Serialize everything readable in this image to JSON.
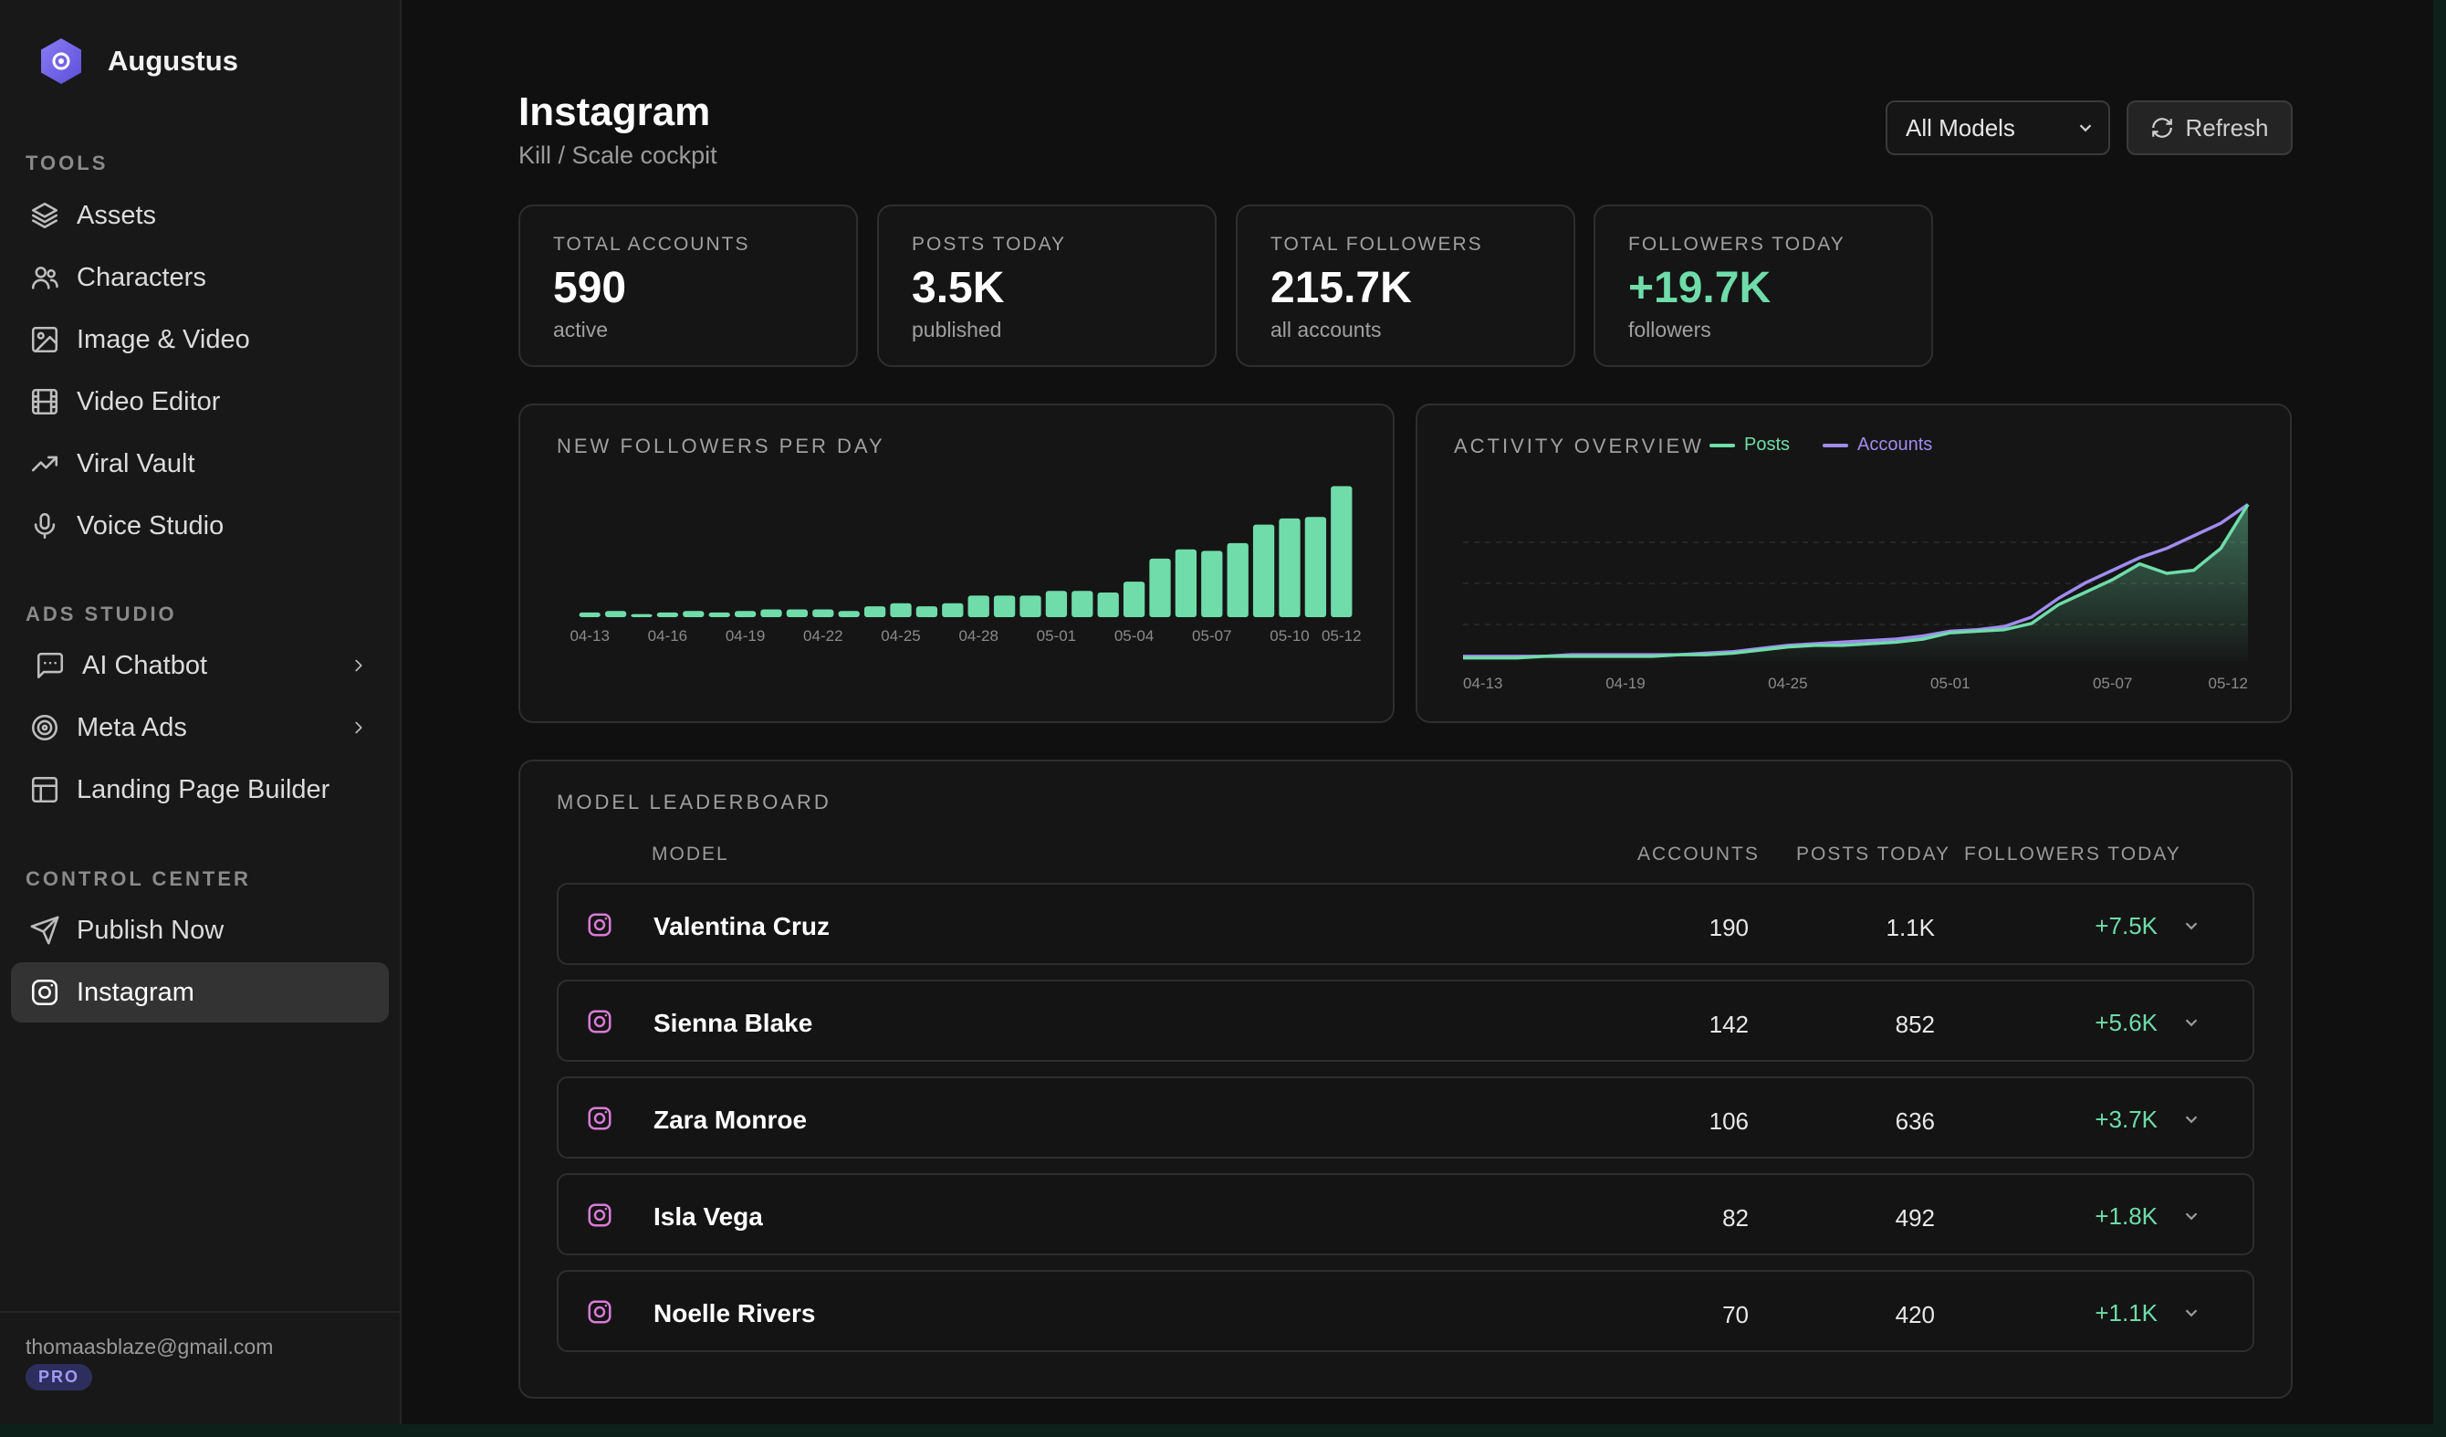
{
  "app": {
    "name": "Augustus"
  },
  "sidebar": {
    "sections": [
      {
        "label": "TOOLS",
        "items": [
          {
            "label": "Assets",
            "icon": "layers-icon"
          },
          {
            "label": "Characters",
            "icon": "users-icon"
          },
          {
            "label": "Image & Video",
            "icon": "image-icon"
          },
          {
            "label": "Video Editor",
            "icon": "film-icon"
          },
          {
            "label": "Viral Vault",
            "icon": "trending-up-icon"
          },
          {
            "label": "Voice Studio",
            "icon": "microphone-icon"
          }
        ]
      },
      {
        "label": "ADS STUDIO",
        "items": [
          {
            "label": "AI Chatbot",
            "icon": "message-square-icon",
            "expandable": true
          },
          {
            "label": "Meta Ads",
            "icon": "target-icon",
            "expandable": true
          },
          {
            "label": "Landing Page Builder",
            "icon": "layout-icon"
          }
        ]
      },
      {
        "label": "CONTROL CENTER",
        "items": [
          {
            "label": "Publish Now",
            "icon": "send-icon"
          },
          {
            "label": "Instagram",
            "icon": "instagram-icon",
            "active": true
          }
        ]
      }
    ],
    "user": {
      "email": "thomaasblaze@gmail.com",
      "plan": "PRO"
    }
  },
  "header": {
    "title": "Instagram",
    "subtitle": "Kill / Scale cockpit",
    "model_select": {
      "value": "All Models"
    },
    "refresh_label": "Refresh"
  },
  "stats": [
    {
      "label": "TOTAL ACCOUNTS",
      "value": "590",
      "sub": "active"
    },
    {
      "label": "POSTS TODAY",
      "value": "3.5K",
      "sub": "published"
    },
    {
      "label": "TOTAL FOLLOWERS",
      "value": "215.7K",
      "sub": "all accounts"
    },
    {
      "label": "FOLLOWERS TODAY",
      "value": "+19.7K",
      "sub": "followers"
    }
  ],
  "colors": {
    "green": "#6fdcaa",
    "purple": "#a08cf0",
    "pink": "#d97ad6"
  },
  "chart_data": [
    {
      "type": "bar",
      "title": "NEW FOLLOWERS PER DAY",
      "categories": [
        "04-13",
        "04-14",
        "04-15",
        "04-16",
        "04-17",
        "04-18",
        "04-19",
        "04-20",
        "04-21",
        "04-22",
        "04-23",
        "04-24",
        "04-25",
        "04-26",
        "04-27",
        "04-28",
        "04-29",
        "04-30",
        "05-01",
        "05-02",
        "05-03",
        "05-04",
        "05-05",
        "05-06",
        "05-07",
        "05-08",
        "05-09",
        "05-10",
        "05-11",
        "05-12"
      ],
      "tick_labels": [
        "04-13",
        "04-16",
        "04-19",
        "04-22",
        "04-25",
        "04-28",
        "05-01",
        "05-04",
        "05-07",
        "05-10",
        "05-12"
      ],
      "values": [
        3,
        4,
        2,
        3,
        4,
        3,
        4,
        5,
        5,
        5,
        4,
        7,
        9,
        7,
        9,
        14,
        14,
        14,
        17,
        17,
        16,
        23,
        38,
        44,
        43,
        48,
        60,
        64,
        65,
        85
      ],
      "ylim": [
        0,
        90
      ]
    },
    {
      "type": "line",
      "title": "ACTIVITY OVERVIEW",
      "x": [
        "04-13",
        "04-14",
        "04-15",
        "04-16",
        "04-17",
        "04-18",
        "04-19",
        "04-20",
        "04-21",
        "04-22",
        "04-23",
        "04-24",
        "04-25",
        "04-26",
        "04-27",
        "04-28",
        "04-29",
        "04-30",
        "05-01",
        "05-02",
        "05-03",
        "05-04",
        "05-05",
        "05-06",
        "05-07",
        "05-08",
        "05-09",
        "05-10",
        "05-11",
        "05-12"
      ],
      "tick_labels": [
        "04-13",
        "04-19",
        "04-25",
        "05-01",
        "05-07",
        "05-12"
      ],
      "series": [
        {
          "name": "Posts",
          "color": "#6fdcaa",
          "values": [
            2,
            2,
            2,
            3,
            3,
            3,
            3,
            3,
            4,
            4,
            5,
            7,
            9,
            10,
            10,
            11,
            12,
            14,
            18,
            19,
            20,
            24,
            36,
            44,
            52,
            62,
            56,
            58,
            72,
            100
          ]
        },
        {
          "name": "Accounts",
          "color": "#a08cf0",
          "values": [
            3,
            3,
            3,
            3,
            4,
            4,
            4,
            4,
            4,
            5,
            6,
            8,
            10,
            11,
            12,
            13,
            14,
            16,
            19,
            20,
            22,
            28,
            40,
            50,
            58,
            66,
            72,
            80,
            88,
            100
          ]
        }
      ],
      "ylim": [
        0,
        105
      ]
    }
  ],
  "leaderboard": {
    "title": "MODEL LEADERBOARD",
    "columns": {
      "model": "MODEL",
      "accounts": "ACCOUNTS",
      "posts": "POSTS TODAY",
      "followers": "FOLLOWERS TODAY"
    },
    "rows": [
      {
        "name": "Valentina Cruz",
        "accounts": "190",
        "posts": "1.1K",
        "followers": "+7.5K"
      },
      {
        "name": "Sienna Blake",
        "accounts": "142",
        "posts": "852",
        "followers": "+5.6K"
      },
      {
        "name": "Zara Monroe",
        "accounts": "106",
        "posts": "636",
        "followers": "+3.7K"
      },
      {
        "name": "Isla Vega",
        "accounts": "82",
        "posts": "492",
        "followers": "+1.8K"
      },
      {
        "name": "Noelle Rivers",
        "accounts": "70",
        "posts": "420",
        "followers": "+1.1K"
      }
    ]
  }
}
